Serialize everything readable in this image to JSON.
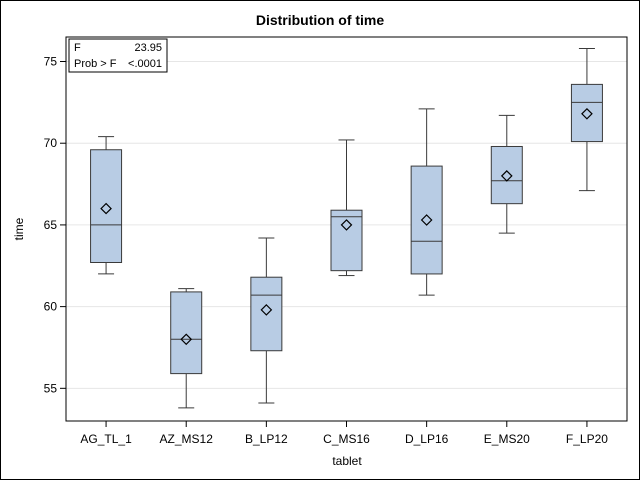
{
  "chart_data": {
    "type": "box",
    "title": "Distribution of time",
    "xlabel": "tablet",
    "ylabel": "time",
    "ylim": [
      53,
      76.5
    ],
    "yticks": [
      55,
      60,
      65,
      70,
      75
    ],
    "grid": true,
    "categories": [
      "AG_TL_1",
      "AZ_MS12",
      "B_LP12",
      "C_MS16",
      "D_LP16",
      "E_MS20",
      "F_LP20"
    ],
    "boxes": [
      {
        "min": 62.0,
        "q1": 62.7,
        "median": 65.0,
        "q3": 69.6,
        "max": 70.4,
        "mean": 66.0
      },
      {
        "min": 53.8,
        "q1": 55.9,
        "median": 58.0,
        "q3": 60.9,
        "max": 61.1,
        "mean": 58.0
      },
      {
        "min": 54.1,
        "q1": 57.3,
        "median": 60.7,
        "q3": 61.8,
        "max": 64.2,
        "mean": 59.8
      },
      {
        "min": 61.9,
        "q1": 62.2,
        "median": 65.5,
        "q3": 65.9,
        "max": 70.2,
        "mean": 65.0
      },
      {
        "min": 60.7,
        "q1": 62.0,
        "median": 64.0,
        "q3": 68.6,
        "max": 72.1,
        "mean": 65.3
      },
      {
        "min": 64.5,
        "q1": 66.3,
        "median": 67.7,
        "q3": 69.8,
        "max": 71.7,
        "mean": 68.0
      },
      {
        "min": 67.1,
        "q1": 70.1,
        "median": 72.5,
        "q3": 73.6,
        "max": 75.8,
        "mean": 71.8
      }
    ],
    "inset": {
      "rows": [
        {
          "label": "F",
          "value": "23.95"
        },
        {
          "label": "Prob > F",
          "value": "<.0001"
        }
      ]
    },
    "colors": {
      "box_fill": "#b8cce4",
      "box_stroke": "#3a3a3a",
      "grid": "#e6e6e6"
    }
  }
}
